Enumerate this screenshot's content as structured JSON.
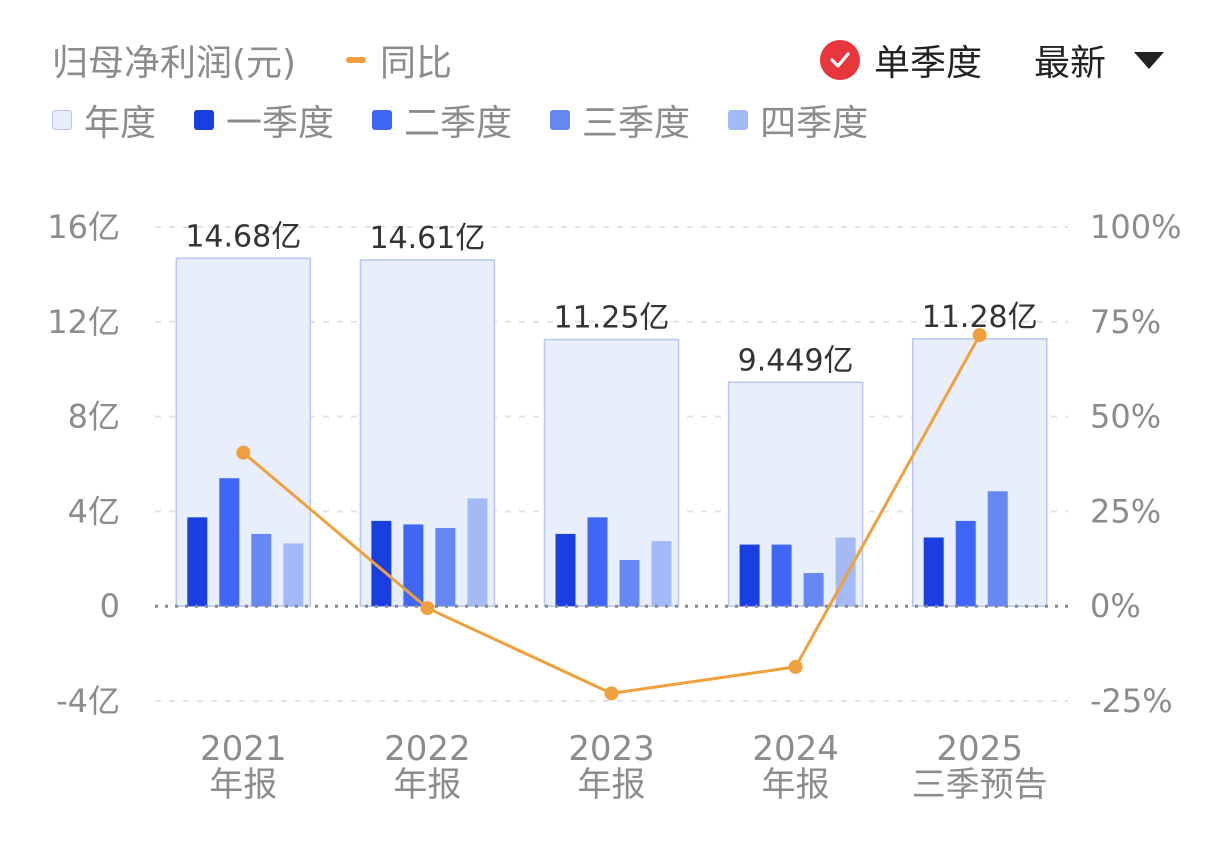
{
  "header": {
    "title": "归母净利润(元)",
    "yoy_label": "同比",
    "single_quarter_label": "单季度",
    "latest_label": "最新"
  },
  "legend": [
    {
      "label": "年度",
      "color": "#e9eefc",
      "border": "#b9c7ee"
    },
    {
      "label": "一季度",
      "color": "#1a3fe0"
    },
    {
      "label": "二季度",
      "color": "#4066f5"
    },
    {
      "label": "三季度",
      "color": "#6788f2"
    },
    {
      "label": "四季度",
      "color": "#a4baf7"
    }
  ],
  "colors": {
    "annual": "#e9eefc",
    "annual_border": "#b9c7ee",
    "q1": "#1a3fe0",
    "q2": "#4066f5",
    "q3": "#6788f2",
    "q4": "#a4baf7",
    "yoy": "#f0a03c",
    "check_badge": "#e8363f"
  },
  "chart_data": {
    "type": "bar",
    "categories": [
      [
        "2021",
        "年报"
      ],
      [
        "2022",
        "年报"
      ],
      [
        "2023",
        "年报"
      ],
      [
        "2024",
        "年报"
      ],
      [
        "2025",
        "三季预告"
      ]
    ],
    "annual": {
      "values": [
        14.68,
        14.61,
        11.25,
        9.449,
        11.28
      ],
      "labels": [
        "14.68亿",
        "14.61亿",
        "11.25亿",
        "9.449亿",
        "11.28亿"
      ]
    },
    "quarters": {
      "q1": [
        3.75,
        3.6,
        3.05,
        2.6,
        2.9
      ],
      "q2": [
        5.4,
        3.45,
        3.75,
        2.6,
        3.6
      ],
      "q3": [
        3.05,
        3.3,
        1.95,
        1.4,
        4.85
      ],
      "q4": [
        2.65,
        4.55,
        2.75,
        2.9,
        null
      ]
    },
    "yoy": [
      40.5,
      -0.5,
      -23,
      -16,
      71.5
    ],
    "y_left": {
      "min": -4,
      "max": 16,
      "ticks": [
        16,
        12,
        8,
        4,
        0,
        -4
      ],
      "tick_labels": [
        "16亿",
        "12亿",
        "8亿",
        "4亿",
        "0",
        "-4亿"
      ]
    },
    "y_right": {
      "min": -25,
      "max": 100,
      "ticks": [
        100,
        75,
        50,
        25,
        0,
        -25
      ],
      "tick_labels": [
        "100%",
        "75%",
        "50%",
        "25%",
        "0%",
        "-25%"
      ]
    },
    "grid": true,
    "legend_position": "top-left"
  }
}
